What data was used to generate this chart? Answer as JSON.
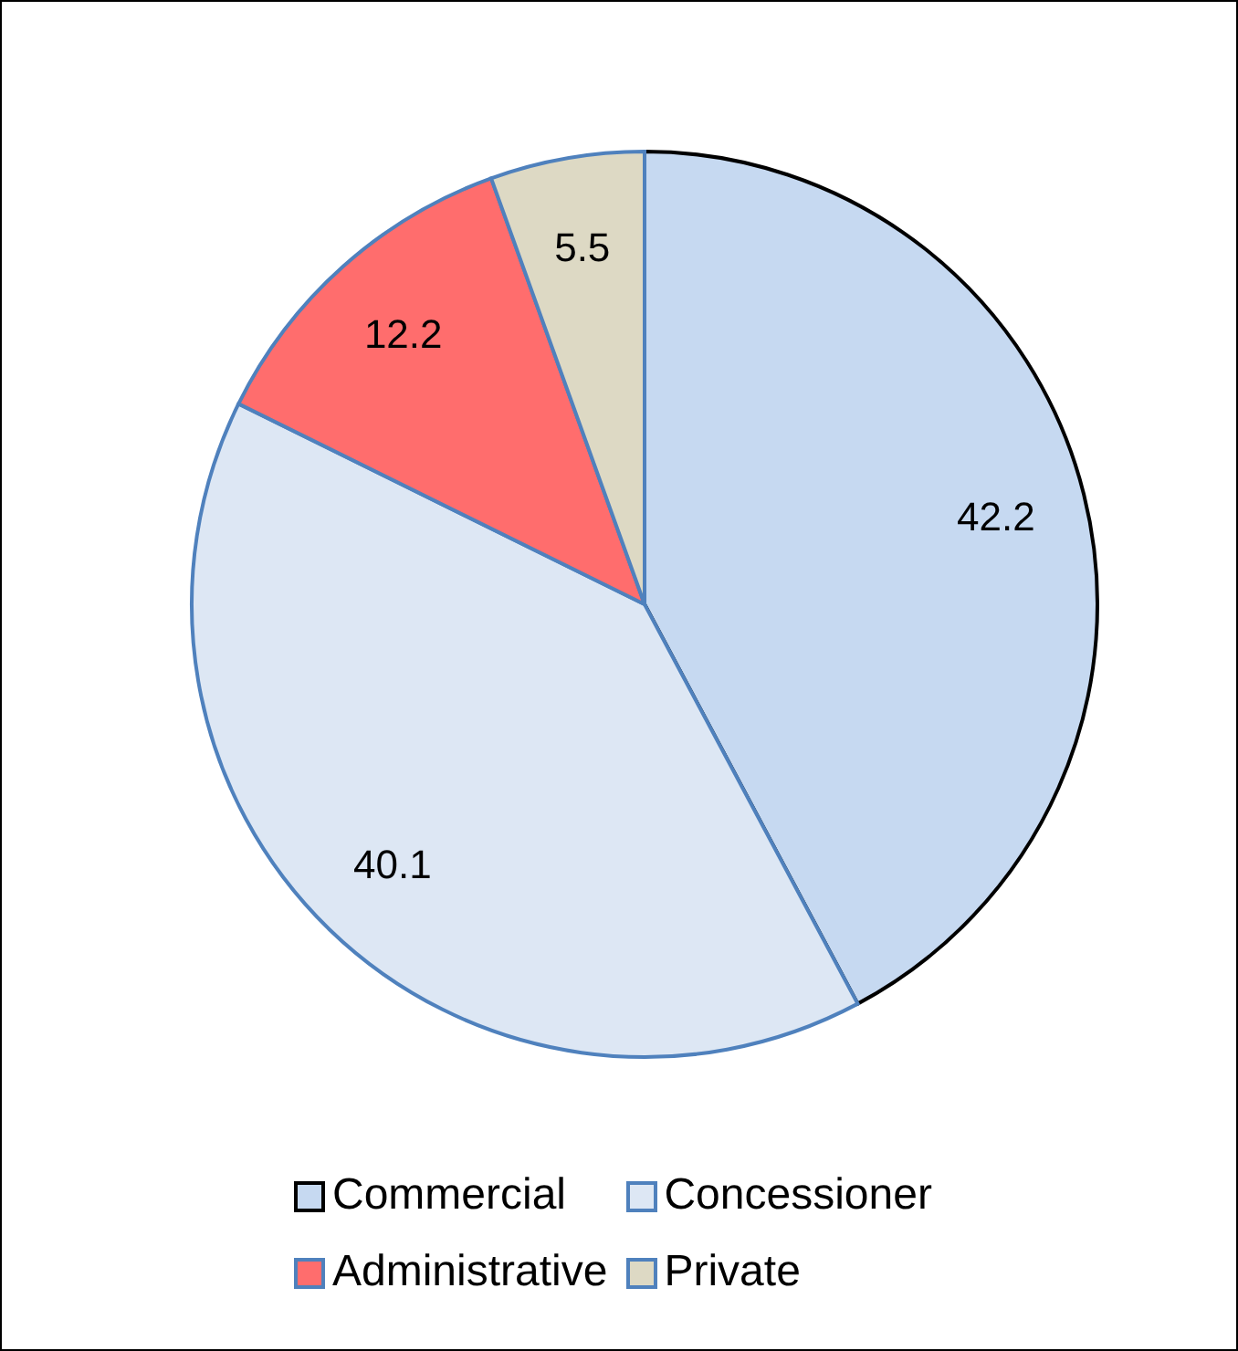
{
  "chart_data": {
    "type": "pie",
    "categories": [
      "Commercial",
      "Concessioner",
      "Administrative",
      "Private"
    ],
    "values": [
      42.2,
      40.1,
      12.2,
      5.5
    ],
    "colors": [
      "#c6d9f1",
      "#dde7f4",
      "#ff6d6d",
      "#ddd9c4"
    ],
    "data_labels": true,
    "legend": "bottom"
  }
}
